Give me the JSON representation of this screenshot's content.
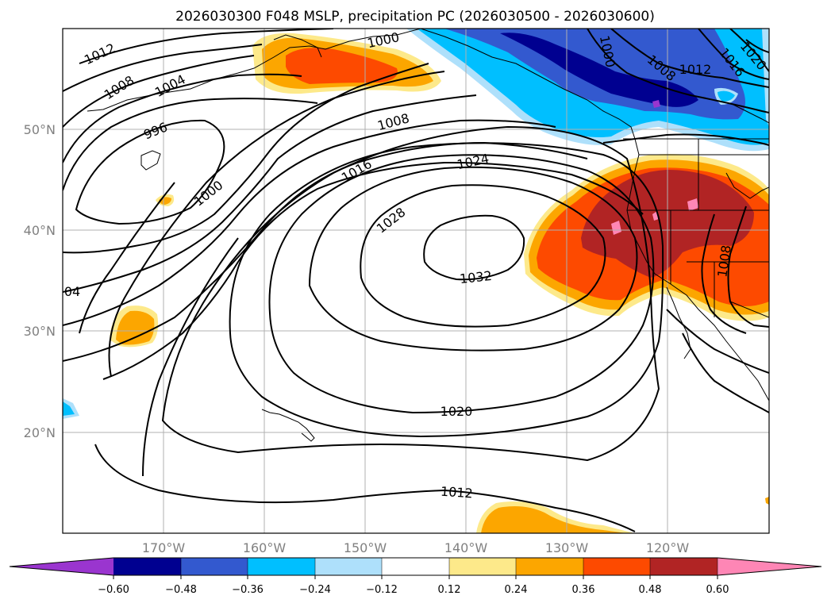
{
  "title": "2026030300 F048 MSLP, precipitation PC (2026030500 - 2026030600)",
  "lat_labels": [
    "50°N",
    "40°N",
    "30°N",
    "20°N"
  ],
  "lon_labels": [
    "170°W",
    "160°W",
    "150°W",
    "140°W",
    "130°W",
    "120°W"
  ],
  "contour_labels": [
    "1012",
    "1008",
    "1004",
    "996",
    "1000",
    "1008",
    "1016",
    "1024",
    "1028",
    "1032",
    "1000",
    "1000",
    "1008",
    "1012",
    "1016",
    "1020",
    "04",
    "1008",
    "1020",
    "1012"
  ],
  "colorbar": {
    "ticks": [
      "−0.60",
      "−0.48",
      "−0.36",
      "−0.24",
      "−0.12",
      "0.12",
      "0.24",
      "0.36",
      "0.48",
      "0.60"
    ],
    "colors": [
      "#9a35cf",
      "#000090",
      "#3359cf",
      "#00bfff",
      "#aee0fb",
      "#ffffff",
      "#fde98a",
      "#fca600",
      "#fd4a00",
      "#b12424",
      "#fe86b5"
    ]
  }
}
